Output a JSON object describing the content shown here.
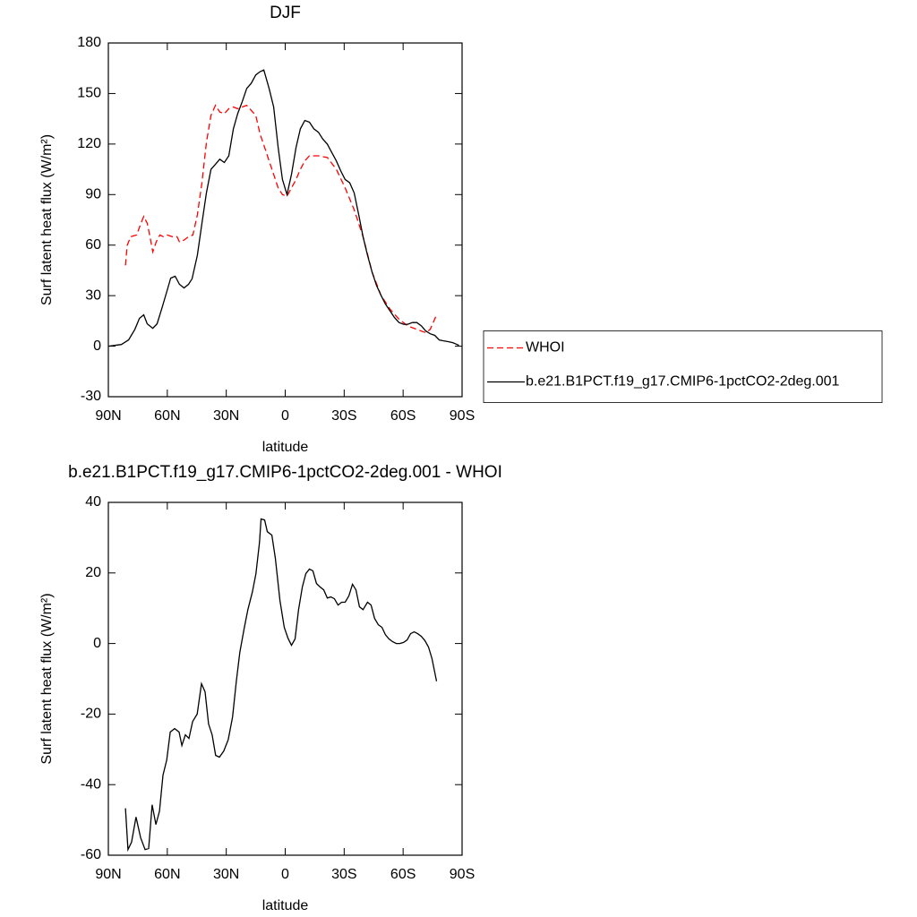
{
  "chart_data": [
    {
      "type": "line",
      "title": "DJF",
      "xlabel": "latitude",
      "ylabel": "Surf latent heat flux (W/m²)",
      "xlim": [
        90,
        -90
      ],
      "xticks": [
        {
          "value": 90,
          "label": "90N"
        },
        {
          "value": 60,
          "label": "60N"
        },
        {
          "value": 30,
          "label": "30N"
        },
        0,
        {
          "value": -30,
          "label": "30S"
        },
        {
          "value": -60,
          "label": "60S"
        },
        {
          "value": -90,
          "label": "90S"
        }
      ],
      "ylim": [
        -30,
        180
      ],
      "yticks": [
        -30,
        0,
        30,
        60,
        90,
        120,
        150,
        180
      ],
      "legend": "right",
      "series": [
        {
          "name": "WHOI",
          "color": "#ff0000",
          "dash": true,
          "x": [
            81.3,
            80.4,
            78.6,
            75.6,
            73.4,
            72,
            70.2,
            68.8,
            67.4,
            65.6,
            63.8,
            62,
            60.1,
            57.4,
            55.1,
            53.8,
            51.5,
            49.2,
            47,
            44.7,
            42.4,
            40.1,
            37.8,
            35.5,
            33.3,
            31,
            28.7,
            26.4,
            24.2,
            21.9,
            19.6,
            17.3,
            15,
            12.8,
            10.5,
            8.2,
            5.9,
            3.6,
            1.4,
            -0.9,
            -3.2,
            -5.5,
            -7.7,
            -10,
            -12.3,
            -16.9,
            -21.4,
            -26,
            -30.5,
            -35.1,
            -39.6,
            -44.2,
            -48.8,
            -53.3,
            -57.9,
            -62.4,
            -67,
            -71.5,
            -73.8,
            -77
          ],
          "values": [
            48,
            60,
            65,
            66,
            73,
            77,
            73,
            65,
            56,
            62,
            66,
            65,
            66,
            65,
            65,
            62,
            63,
            65,
            66,
            78,
            97,
            121,
            137,
            143,
            139,
            138,
            141,
            142,
            141,
            142,
            143,
            140,
            137,
            126,
            118,
            110,
            102,
            94,
            90,
            89,
            94,
            99,
            105,
            110,
            113,
            113,
            112,
            105,
            94,
            81,
            65,
            44,
            30,
            22,
            16,
            12,
            10,
            8,
            10,
            18.6
          ]
        },
        {
          "name": "b.e21.B1PCT.f19_g17.CMIP6-1pctCO2-2deg.001",
          "color": "#000000",
          "dash": false,
          "x": [
            90,
            83.4,
            79.7,
            76.5,
            74.2,
            72,
            70.2,
            67.4,
            65.2,
            62.9,
            60.1,
            58.3,
            56,
            53.8,
            51.5,
            49.2,
            47.4,
            44.7,
            42.4,
            40.1,
            37.8,
            35.5,
            33.3,
            31,
            28.7,
            26.4,
            24.2,
            21.9,
            19.6,
            17.3,
            15,
            12.8,
            10.9,
            8.2,
            5.9,
            3.6,
            1.4,
            -0.9,
            -3.2,
            -5.5,
            -7.7,
            -10,
            -12.3,
            -14.6,
            -16.9,
            -19.1,
            -21.4,
            -23.7,
            -26,
            -28.3,
            -30.5,
            -32.8,
            -35.1,
            -37.4,
            -39.6,
            -41.9,
            -44.2,
            -46.5,
            -48.8,
            -51,
            -53.3,
            -55.6,
            -57.9,
            -60.2,
            -62.4,
            -64.7,
            -67,
            -69.3,
            -71.5,
            -73.8,
            -76.1,
            -78.4,
            -80.6,
            -82.9,
            -85.2,
            -88.4
          ],
          "values": [
            0,
            1,
            3.7,
            10,
            16.5,
            18.6,
            13.3,
            10.6,
            13.3,
            22,
            33,
            40.4,
            41.5,
            36.7,
            34.6,
            36.7,
            40,
            54,
            73,
            91,
            105,
            108,
            111,
            109,
            113,
            129,
            138,
            145,
            153,
            156,
            161,
            163,
            164,
            153,
            142,
            118,
            99,
            90,
            102,
            118,
            129,
            134,
            133,
            129,
            127,
            123,
            120,
            115,
            110,
            104,
            99,
            97,
            91,
            78,
            65,
            54,
            44,
            36,
            30,
            25,
            21,
            17,
            14,
            13,
            13,
            14,
            14,
            12,
            9,
            7.4,
            6.4,
            3.7,
            3.2,
            2.7,
            2.1,
            0.5
          ]
        }
      ]
    },
    {
      "type": "line",
      "title": "b.e21.B1PCT.f19_g17.CMIP6-1pctCO2-2deg.001 - WHOI",
      "xlabel": "latitude",
      "ylabel": "Surf latent heat flux (W/m²)",
      "xlim": [
        90,
        -90
      ],
      "xticks": [
        {
          "value": 90,
          "label": "90N"
        },
        {
          "value": 60,
          "label": "60N"
        },
        {
          "value": 30,
          "label": "30N"
        },
        0,
        {
          "value": -30,
          "label": "30S"
        },
        {
          "value": -60,
          "label": "60S"
        },
        {
          "value": -90,
          "label": "90S"
        }
      ],
      "ylim": [
        -60,
        40
      ],
      "yticks": [
        -60,
        -40,
        -20,
        0,
        20,
        40
      ],
      "series": [
        {
          "color": "#000000",
          "dash": false,
          "x": [
            81.3,
            80,
            78.2,
            75.9,
            73.6,
            71.3,
            69.5,
            67.7,
            65.8,
            64,
            62.2,
            60.3,
            58.5,
            56.3,
            54,
            52.6,
            50.8,
            49,
            47.1,
            44.8,
            42.6,
            40.8,
            39,
            37.2,
            35.4,
            33.5,
            31.3,
            29,
            26.8,
            24.9,
            23.1,
            20.8,
            19,
            16.7,
            14.9,
            13.1,
            12.3,
            10.5,
            9.1,
            6.8,
            5,
            2.7,
            0.5,
            -1.4,
            -3.2,
            -5,
            -6.8,
            -8.7,
            -10.5,
            -12.3,
            -14.1,
            -15.9,
            -17.8,
            -19.6,
            -21.4,
            -23.2,
            -25,
            -26.9,
            -28.7,
            -30.5,
            -32.4,
            -34.2,
            -36,
            -37.8,
            -39.6,
            -41.9,
            -43.7,
            -45.5,
            -47.4,
            -49.2,
            -51,
            -52.8,
            -54.7,
            -56.5,
            -58.3,
            -60.2,
            -62,
            -63.8,
            -65.6,
            -67.4,
            -69.3,
            -71.1,
            -72.9,
            -74.7,
            -77
          ],
          "values": [
            -46.7,
            -58.4,
            -56.3,
            -49.2,
            -55,
            -58.4,
            -58.1,
            -45.7,
            -51.3,
            -47.5,
            -37.3,
            -33,
            -25.1,
            -24.1,
            -25.1,
            -28.9,
            -25.9,
            -26.9,
            -22.1,
            -20,
            -11.4,
            -13.7,
            -22.8,
            -25.9,
            -31.7,
            -32.2,
            -30.5,
            -27.2,
            -20.8,
            -10.7,
            -2.5,
            4.6,
            9.6,
            14.7,
            19.8,
            28.7,
            35.3,
            35,
            31.7,
            30.7,
            24.1,
            12.2,
            4.6,
            1.5,
            -0.5,
            1.3,
            9.6,
            16,
            19.8,
            21.1,
            20.6,
            17,
            16,
            15.2,
            12.9,
            13.2,
            12.7,
            10.9,
            11.7,
            11.7,
            13.5,
            16.8,
            15.2,
            10.4,
            9.6,
            11.7,
            10.9,
            7.1,
            5.3,
            4.6,
            2.5,
            1.3,
            0.5,
            0,
            0,
            0.3,
            1,
            2.8,
            3.3,
            2.8,
            2,
            0.8,
            -1,
            -4.3,
            -10.7
          ]
        }
      ]
    }
  ]
}
